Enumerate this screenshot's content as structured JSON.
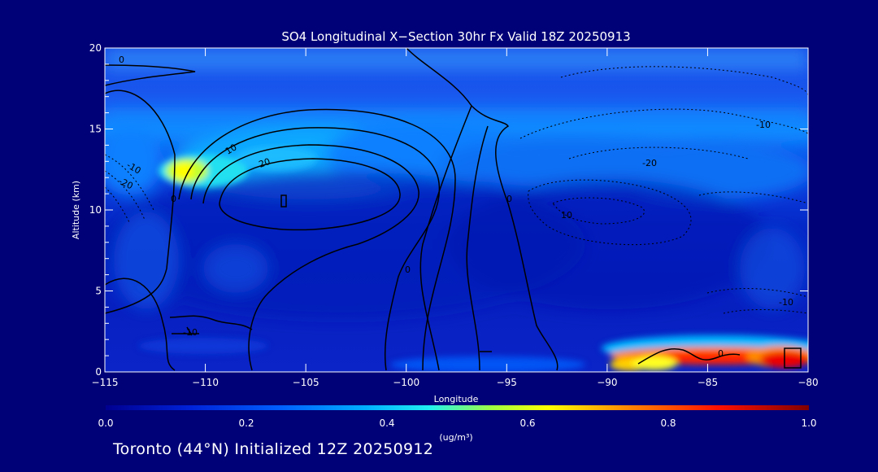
{
  "chart_data": {
    "type": "heatmap",
    "title": "SO4 Longitudinal X−Section 30hr  Fx Valid 18Z 20250913",
    "xlabel": "Longitude",
    "ylabel": "Altitude (km)",
    "xlim": [
      -115,
      -80
    ],
    "ylim": [
      0,
      20
    ],
    "x_ticks": [
      -115,
      -110,
      -105,
      -100,
      -95,
      -90,
      -85,
      -80
    ],
    "x_tick_labels": [
      "−115",
      "−110",
      "−105",
      "−100",
      "−95",
      "−90",
      "−85",
      "−80"
    ],
    "y_ticks": [
      0,
      5,
      10,
      15,
      20
    ],
    "y_tick_labels": [
      "0",
      "5",
      "10",
      "15",
      "20"
    ],
    "colorbar": {
      "min": 0.0,
      "max": 1.0,
      "ticks": [
        "0.0",
        "0.2",
        "0.4",
        "0.6",
        "0.8",
        "1.0"
      ],
      "units_label": "(ug/m³)"
    },
    "concentration_features": [
      {
        "lon": -111,
        "alt": 12.5,
        "value": 0.65,
        "note": "upper-level maximum"
      },
      {
        "lon": -106,
        "alt": 13.0,
        "value": 0.3
      },
      {
        "lon": -100,
        "alt": 15.5,
        "value": 0.2
      },
      {
        "lon": -82,
        "alt": 0.7,
        "value": 0.95,
        "note": "near-surface maximum"
      },
      {
        "lon": -86,
        "alt": 0.5,
        "value": 0.85
      },
      {
        "lon": -89,
        "alt": 0.4,
        "value": 0.65
      }
    ],
    "contour_labels": [
      "0",
      "10",
      "20",
      "-10",
      "-20",
      "0",
      "-10",
      "-20",
      "0",
      "10",
      "-10",
      "0",
      "0",
      "-10"
    ]
  },
  "footer": "Toronto (44°N) Initialized 12Z 20250912",
  "colors": {
    "background": "#000077",
    "plot_base": "#00008a",
    "colormap": [
      "#000090",
      "#0022d8",
      "#0060ff",
      "#00b0ff",
      "#20f0f0",
      "#a0ff40",
      "#ffff00",
      "#ff8000",
      "#ff1000",
      "#800000"
    ]
  }
}
